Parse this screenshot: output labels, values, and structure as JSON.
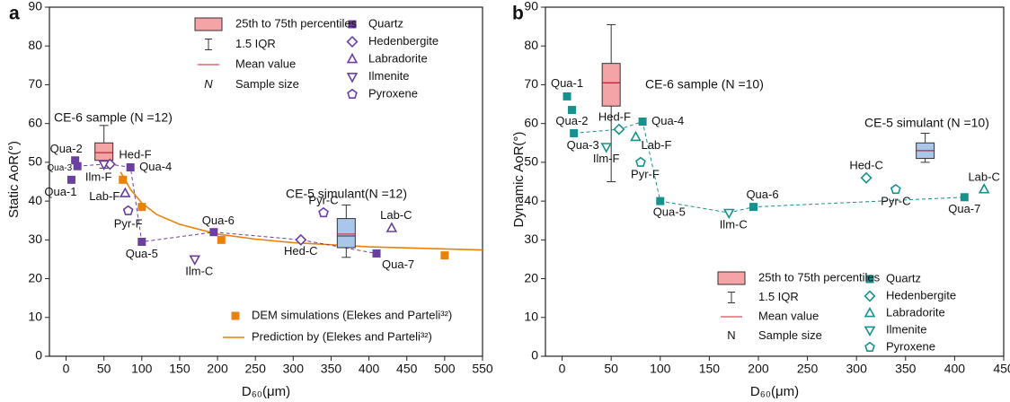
{
  "chart_data": [
    {
      "type": "scatter",
      "panel_label": "a",
      "xlabel": "D₆₀(μm)",
      "ylabel": "Static AoR(°)",
      "xlim": [
        -22,
        550
      ],
      "ylim": [
        0,
        90
      ],
      "xticks": [
        0,
        50,
        100,
        150,
        200,
        250,
        300,
        350,
        400,
        450,
        500,
        550
      ],
      "yticks": [
        0,
        10,
        20,
        30,
        40,
        50,
        60,
        70,
        80,
        90
      ],
      "series": [
        {
          "name": "Quartz",
          "marker": "square",
          "filled": true,
          "color": "#6a3fa0",
          "labels": [
            "Qua-1",
            "Qua-2",
            "Qua-3",
            "Qua-4",
            "Qua-5",
            "Qua-6",
            "Qua-7"
          ],
          "x": [
            7,
            12,
            15,
            85,
            100,
            195,
            410
          ],
          "values": [
            45.5,
            50.5,
            49,
            48.7,
            29.5,
            32,
            26.5
          ]
        },
        {
          "name": "Hedenbergite",
          "marker": "diamond",
          "filled": false,
          "color": "#6a3fa0",
          "labels": [
            "Hed-F",
            "Hed-C"
          ],
          "x": [
            58,
            310
          ],
          "values": [
            49.5,
            30
          ]
        },
        {
          "name": "Labradorite",
          "marker": "triangle",
          "filled": false,
          "color": "#6a3fa0",
          "labels": [
            "Lab-F",
            "Lab-C"
          ],
          "x": [
            78,
            430
          ],
          "values": [
            42,
            33
          ]
        },
        {
          "name": "Ilmenite",
          "marker": "triangle-down",
          "filled": false,
          "color": "#6a3fa0",
          "labels": [
            "Ilm-F",
            "Ilm-C"
          ],
          "x": [
            50,
            170
          ],
          "values": [
            49.5,
            25
          ]
        },
        {
          "name": "Pyroxene",
          "marker": "pentagon",
          "filled": false,
          "color": "#6a3fa0",
          "labels": [
            "Pyr-F",
            "Pyr-C"
          ],
          "x": [
            82,
            340
          ],
          "values": [
            37.5,
            37
          ]
        },
        {
          "name": "DEM simulations (Elekes and Parteli³²)",
          "marker": "square",
          "filled": true,
          "color": "#e8820c",
          "x": [
            75,
            100,
            205,
            500
          ],
          "values": [
            45.5,
            38.5,
            30,
            26
          ]
        }
      ],
      "fit": {
        "name": "Prediction by (Elekes and Parteli³²)",
        "color": "#e8820c",
        "x": [
          72,
          85,
          100,
          120,
          150,
          200,
          250,
          300,
          400,
          550
        ],
        "values": [
          47.5,
          43,
          39.5,
          36.5,
          34,
          31.5,
          30.2,
          29.3,
          28.2,
          27.4
        ]
      },
      "boxes": [
        {
          "label": "CE-6 sample (N =12)",
          "color": "#f4a3a6",
          "label_color": "#c0101a",
          "x": 50,
          "whislo": 48.5,
          "q1": 50.5,
          "med": 52.5,
          "mean": 52.5,
          "q3": 55,
          "whishi": 59.5
        },
        {
          "label": "CE-5 simulant(N =12)",
          "color": "#a9c7e8",
          "label_color": "#2b6c9a",
          "x": 370,
          "whislo": 25.5,
          "q1": 28,
          "med": 31,
          "mean": 31.5,
          "q3": 35.5,
          "whishi": 39
        }
      ],
      "legend": {
        "box": "25th to 75th percentiles",
        "whisker": "1.5 IQR",
        "mean": "Mean value",
        "n_symbol": "N",
        "n_text": "Sample size"
      }
    },
    {
      "type": "scatter",
      "panel_label": "b",
      "xlabel": "D₆₀(μm)",
      "ylabel": "Dynamic AoR(°)",
      "xlim": [
        -17,
        450
      ],
      "ylim": [
        0,
        90
      ],
      "xticks": [
        0,
        50,
        100,
        150,
        200,
        250,
        300,
        350,
        400,
        450
      ],
      "yticks": [
        0,
        10,
        20,
        30,
        40,
        50,
        60,
        70,
        80,
        90
      ],
      "series": [
        {
          "name": "Quartz",
          "marker": "square",
          "filled": true,
          "color": "#17918e",
          "labels": [
            "Qua-1",
            "Qua-2",
            "Qua-3",
            "Qua-4",
            "Qua-5",
            "Qua-6",
            "Qua-7"
          ],
          "x": [
            5,
            10,
            12,
            82,
            100,
            195,
            410
          ],
          "values": [
            67,
            63.5,
            57.5,
            60.5,
            40,
            38.5,
            41
          ]
        },
        {
          "name": "Hedenbergite",
          "marker": "diamond",
          "filled": false,
          "color": "#17918e",
          "labels": [
            "Hed-F",
            "Hed-C"
          ],
          "x": [
            58,
            310
          ],
          "values": [
            58.5,
            46
          ]
        },
        {
          "name": "Labradorite",
          "marker": "triangle",
          "filled": false,
          "color": "#17918e",
          "labels": [
            "Lab-F",
            "Lab-C"
          ],
          "x": [
            75,
            430
          ],
          "values": [
            56.5,
            43
          ]
        },
        {
          "name": "Ilmenite",
          "marker": "triangle-down",
          "filled": false,
          "color": "#17918e",
          "labels": [
            "Ilm-F",
            "Ilm-C"
          ],
          "x": [
            45,
            170
          ],
          "values": [
            54,
            37
          ]
        },
        {
          "name": "Pyroxene",
          "marker": "pentagon",
          "filled": false,
          "color": "#17918e",
          "labels": [
            "Pyr-F",
            "Pyr-C"
          ],
          "x": [
            80,
            340
          ],
          "values": [
            50,
            43
          ]
        }
      ],
      "boxes": [
        {
          "label": "CE-6 sample (N =10)",
          "color": "#f4a3a6",
          "label_color": "#c0101a",
          "x": 50,
          "whislo": 45,
          "q1": 64.5,
          "med": 70.5,
          "mean": 70.5,
          "q3": 75.5,
          "whishi": 85.5
        },
        {
          "label": "CE-5 simulant (N =10)",
          "color": "#a9c7e8",
          "label_color": "#2b6c9a",
          "x": 370,
          "whislo": 50,
          "q1": 51,
          "med": 53,
          "mean": 53,
          "q3": 55,
          "whishi": 57.5
        }
      ],
      "legend": {
        "box": "25th to 75th percentiles",
        "whisker": "1.5 IQR",
        "mean": "Mean value",
        "n_symbol": "N",
        "n_text": "Sample size"
      }
    }
  ]
}
